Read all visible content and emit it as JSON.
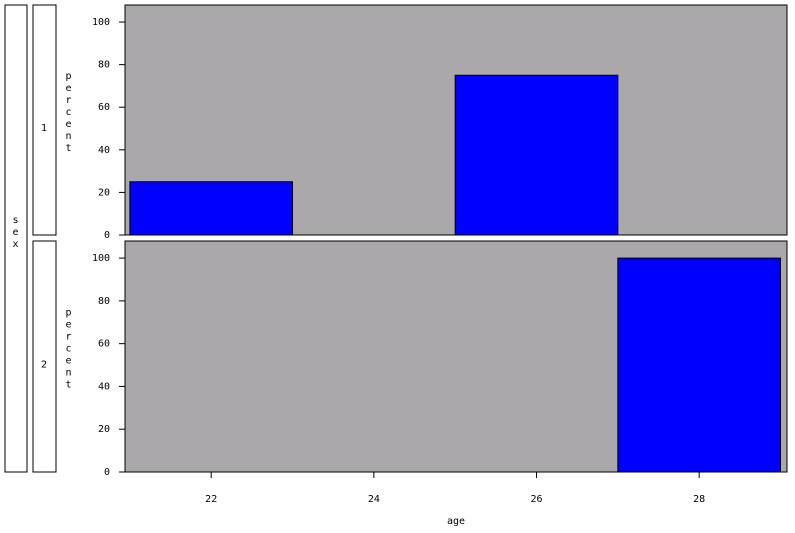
{
  "panel_variable": "sex",
  "chart_data": [
    {
      "type": "histogram",
      "panel": "1",
      "ylabel": "percent",
      "bins": [
        21,
        23,
        25,
        27,
        29
      ],
      "values": [
        25,
        0,
        75,
        0
      ],
      "color": "#0000ff",
      "background": "#aaa8aa",
      "xlim": [
        20.94,
        29.08
      ],
      "ylim": [
        0,
        108
      ],
      "yticks": [
        0,
        20,
        40,
        60,
        80,
        100
      ]
    },
    {
      "type": "histogram",
      "panel": "2",
      "ylabel": "percent",
      "bins": [
        21,
        23,
        25,
        27,
        29
      ],
      "values": [
        0,
        0,
        0,
        100
      ],
      "color": "#0000ff",
      "background": "#aaa8aa",
      "xlim": [
        20.94,
        29.08
      ],
      "ylim": [
        0,
        108
      ],
      "yticks": [
        0,
        20,
        40,
        60,
        80,
        100
      ],
      "xticks": [
        22,
        24,
        26,
        28
      ],
      "xlabel": "age"
    }
  ]
}
